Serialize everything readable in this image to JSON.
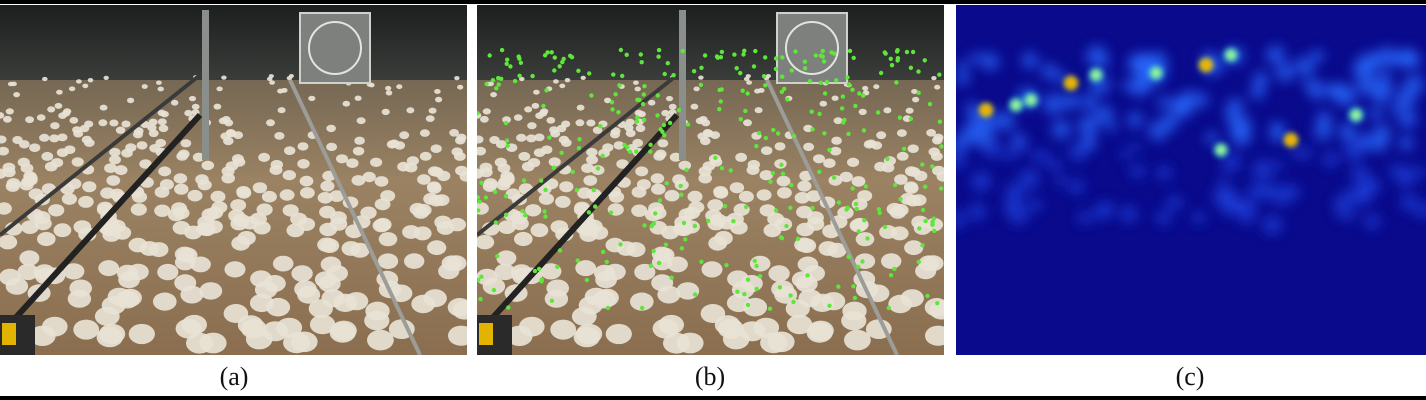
{
  "figure": {
    "panels": [
      {
        "id": "a",
        "caption": "(a)",
        "content": "poultry-house-photo"
      },
      {
        "id": "b",
        "caption": "(b)",
        "content": "poultry-house-photo-with-green-point-annotations"
      },
      {
        "id": "c",
        "caption": "(c)",
        "content": "density-heatmap"
      }
    ]
  },
  "colors": {
    "frame": "#000000",
    "barn_dark": "#2b2e2c",
    "floor": "#8f7654",
    "chick": "#e8e3d6",
    "annotation_point": "#5ee63a",
    "heatmap_background": "#0a0a8c",
    "heatmap_hot": "#ff2a00"
  }
}
